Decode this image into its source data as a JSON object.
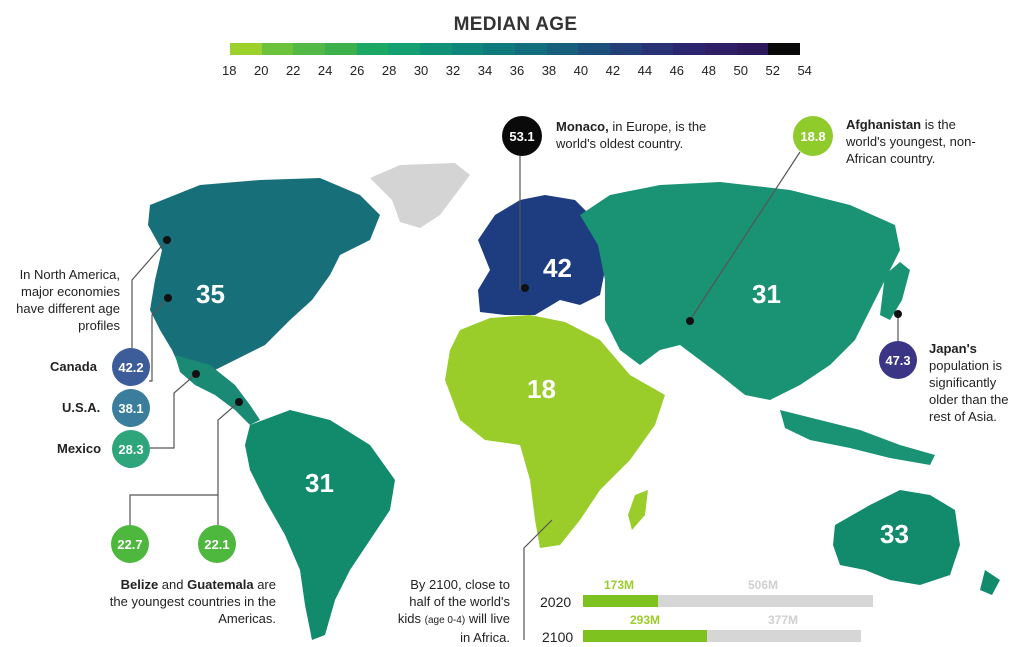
{
  "legend": {
    "title": "MEDIAN AGE",
    "ticks": [
      "18",
      "20",
      "22",
      "24",
      "26",
      "28",
      "30",
      "32",
      "34",
      "36",
      "38",
      "40",
      "42",
      "44",
      "46",
      "48",
      "50",
      "52",
      "54"
    ],
    "colors": [
      "#9bd12a",
      "#6cc23a",
      "#52b944",
      "#3cb04a",
      "#1aa864",
      "#14a070",
      "#0f9275",
      "#0e8679",
      "#0f7a7c",
      "#126e7d",
      "#175f7b",
      "#1c4f7a",
      "#223f78",
      "#283275",
      "#2c2670",
      "#2e1f66",
      "#2c1a5c",
      "#080808"
    ]
  },
  "regions": {
    "north_america": {
      "label": "35",
      "color": "#176f7a"
    },
    "south_america": {
      "label": "31",
      "color": "#128a6c"
    },
    "europe": {
      "label": "42",
      "color": "#1e3d80"
    },
    "africa": {
      "label": "18",
      "color": "#9acd2a"
    },
    "asia": {
      "label": "31",
      "color": "#1a9374"
    },
    "oceania": {
      "label": "33",
      "color": "#128a6c"
    },
    "greenland": {
      "color": "#d4d4d4"
    }
  },
  "callouts": {
    "north_america_note": "In North America, major economies have different age profiles",
    "canada": {
      "name": "Canada",
      "value": "42.2",
      "color": "#3d5c9a"
    },
    "usa": {
      "name": "U.S.A.",
      "value": "38.1",
      "color": "#3a7d9c"
    },
    "mexico": {
      "name": "Mexico",
      "value": "28.3",
      "color": "#2ea57a"
    },
    "belize": {
      "value": "22.7",
      "color": "#4db83d"
    },
    "guatemala": {
      "value": "22.1",
      "color": "#4db83d"
    },
    "americas_note_bold1": "Belize",
    "americas_note_mid": " and ",
    "americas_note_bold2": "Guatemala",
    "americas_note_rest": " are the youngest countries in the Americas.",
    "monaco": {
      "value": "53.1",
      "color": "#0a0a0a",
      "bold": "Monaco,",
      "text": " in Europe, is the world's oldest country."
    },
    "afghanistan": {
      "value": "18.8",
      "color": "#8fcb2a",
      "bold": "Afghanistan",
      "text": " is the world's youngest, non-African country."
    },
    "japan": {
      "value": "47.3",
      "color": "#3a3584",
      "bold": "Japan's",
      "text": "population is significantly older than the rest of Asia."
    }
  },
  "africa_kids": {
    "note_1": "By 2100, close to half of the world's kids ",
    "note_small": "(age 0-4)",
    "note_2": " will live in Africa.",
    "bars": [
      {
        "year": "2020",
        "africa": "173M",
        "rest": "506M"
      },
      {
        "year": "2100",
        "africa": "293M",
        "rest": "377M"
      }
    ]
  },
  "chart_data": {
    "type": "table",
    "title": "MEDIAN AGE",
    "legend_range": [
      18,
      54
    ],
    "regions": [
      {
        "region": "North America",
        "median_age": 35
      },
      {
        "region": "South America",
        "median_age": 31
      },
      {
        "region": "Europe",
        "median_age": 42
      },
      {
        "region": "Africa",
        "median_age": 18
      },
      {
        "region": "Asia",
        "median_age": 31
      },
      {
        "region": "Oceania",
        "median_age": 33
      }
    ],
    "countries": [
      {
        "country": "Canada",
        "median_age": 42.2
      },
      {
        "country": "U.S.A.",
        "median_age": 38.1
      },
      {
        "country": "Mexico",
        "median_age": 28.3
      },
      {
        "country": "Belize",
        "median_age": 22.7
      },
      {
        "country": "Guatemala",
        "median_age": 22.1
      },
      {
        "country": "Monaco",
        "median_age": 53.1
      },
      {
        "country": "Afghanistan",
        "median_age": 18.8
      },
      {
        "country": "Japan",
        "median_age": 47.3
      }
    ],
    "kids_age_0_4_millions": [
      {
        "year": 2020,
        "africa": 173,
        "rest_of_world": 506
      },
      {
        "year": 2100,
        "africa": 293,
        "rest_of_world": 377
      }
    ]
  }
}
